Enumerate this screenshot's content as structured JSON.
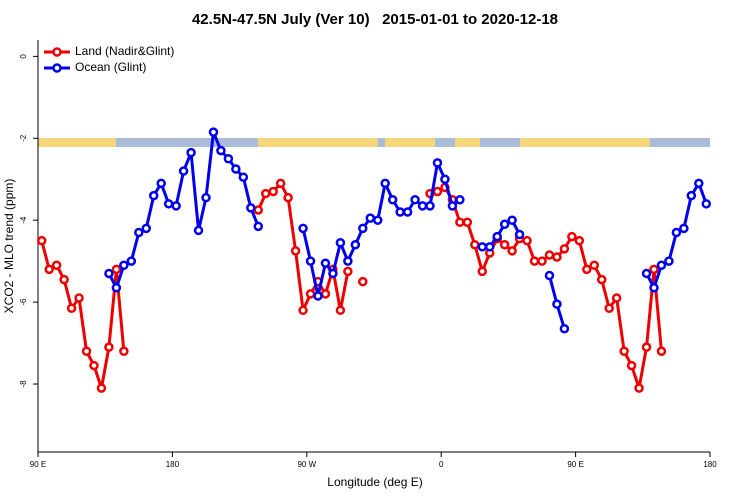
{
  "chart_data": {
    "type": "line",
    "title": "42.5N-47.5N July (Ver 10)   2015-01-01 to 2020-12-18",
    "x_label": "Longitude (deg E)",
    "y_label": "XCO2 - MLO trend (ppm)",
    "x": [
      92.5,
      97.5,
      102.5,
      107.5,
      112.5,
      117.5,
      122.5,
      127.5,
      132.5,
      137.5,
      142.5,
      147.5,
      152.5,
      157.5,
      162.5,
      167.5,
      172.5,
      177.5,
      182.5,
      187.5,
      192.5,
      197.5,
      202.5,
      207.5,
      212.5,
      217.5,
      222.5,
      227.5,
      232.5,
      237.5,
      242.5,
      247.5,
      252.5,
      257.5,
      262.5,
      267.5,
      272.5,
      277.5,
      282.5,
      287.5,
      292.5,
      297.5,
      302.5,
      307.5,
      312.5,
      317.5,
      322.5,
      327.5,
      332.5,
      337.5,
      342.5,
      347.5,
      352.5,
      357.5,
      362.5,
      367.5,
      372.5,
      377.5,
      382.5,
      387.5,
      392.5,
      397.5,
      402.5,
      407.5,
      412.5,
      417.5,
      422.5,
      427.5,
      432.5,
      437.5,
      442.5,
      447.5,
      452.5,
      457.5,
      462.5,
      467.5,
      472.5,
      477.5,
      482.5,
      487.5,
      492.5,
      497.5,
      502.5,
      507.5,
      512.5,
      517.5,
      522.5,
      527.5,
      532.5,
      537.5
    ],
    "series": [
      {
        "name": "Land (Nadir&Glint)",
        "color": "#ee0000",
        "values": [
          -4.5,
          -5.2,
          -5.1,
          -5.45,
          -6.15,
          -5.9,
          -7.2,
          -7.55,
          -8.1,
          -7.1,
          -5.2,
          -7.2,
          null,
          null,
          null,
          null,
          null,
          null,
          null,
          null,
          null,
          null,
          null,
          null,
          null,
          null,
          null,
          null,
          null,
          -3.75,
          -3.35,
          -3.3,
          -3.1,
          -3.45,
          -4.75,
          -6.2,
          -5.8,
          -5.5,
          -5.8,
          -5.2,
          -6.2,
          -5.25,
          null,
          -5.5,
          null,
          null,
          null,
          null,
          null,
          null,
          null,
          null,
          -3.35,
          -3.3,
          -3.2,
          -3.5,
          -4.05,
          -4.05,
          -4.6,
          -5.25,
          -4.8,
          -4.45,
          -4.6,
          -4.75,
          -4.45,
          -4.5,
          -5.0,
          -5.0,
          -4.85,
          -4.9,
          -4.7,
          -4.4,
          -4.5,
          -5.2,
          -5.1,
          -5.45,
          -6.15,
          -5.9,
          -7.2,
          -7.55,
          -8.1,
          -7.1,
          -5.2,
          -7.2,
          null,
          null,
          null,
          null,
          null,
          null
        ]
      },
      {
        "name": "Ocean (Glint)",
        "color": "#0000ee",
        "values": [
          null,
          null,
          null,
          null,
          null,
          null,
          null,
          null,
          null,
          -5.3,
          -5.65,
          -5.1,
          -5.0,
          -4.3,
          -4.2,
          -3.4,
          -3.1,
          -3.6,
          -3.65,
          -2.8,
          -2.35,
          -4.25,
          -3.45,
          -1.85,
          -2.3,
          -2.5,
          -2.75,
          -2.95,
          -3.7,
          -4.15,
          null,
          null,
          null,
          null,
          null,
          -4.2,
          -5.0,
          -5.85,
          -5.05,
          -5.3,
          -4.55,
          -5.0,
          -4.6,
          -4.2,
          -3.95,
          -4.0,
          -3.1,
          -3.5,
          -3.8,
          -3.8,
          -3.5,
          -3.65,
          -3.65,
          -2.6,
          -3.0,
          -3.65,
          -3.5,
          null,
          null,
          -4.65,
          -4.65,
          -4.4,
          -4.1,
          -4.0,
          -4.35,
          null,
          null,
          null,
          -5.35,
          -6.05,
          -6.65,
          null,
          null,
          null,
          null,
          null,
          null,
          null,
          null,
          null,
          null,
          -5.3,
          -5.65,
          -5.1,
          -5.0,
          -4.3,
          -4.2,
          -3.4,
          -3.1,
          -3.6
        ]
      }
    ],
    "xlim": [
      90,
      540
    ],
    "xticks": [
      {
        "value": 90,
        "label": "90 E"
      },
      180,
      {
        "value": 270,
        "label": "90 W"
      },
      {
        "value": 360,
        "label": "0"
      },
      {
        "value": 450,
        "label": "90 E"
      },
      {
        "value": 540,
        "label": "180"
      }
    ],
    "ylim": [
      -9.66,
      0.4
    ],
    "yticks": [
      0,
      -2,
      -4,
      -6,
      -8
    ],
    "legend": "top-left"
  }
}
